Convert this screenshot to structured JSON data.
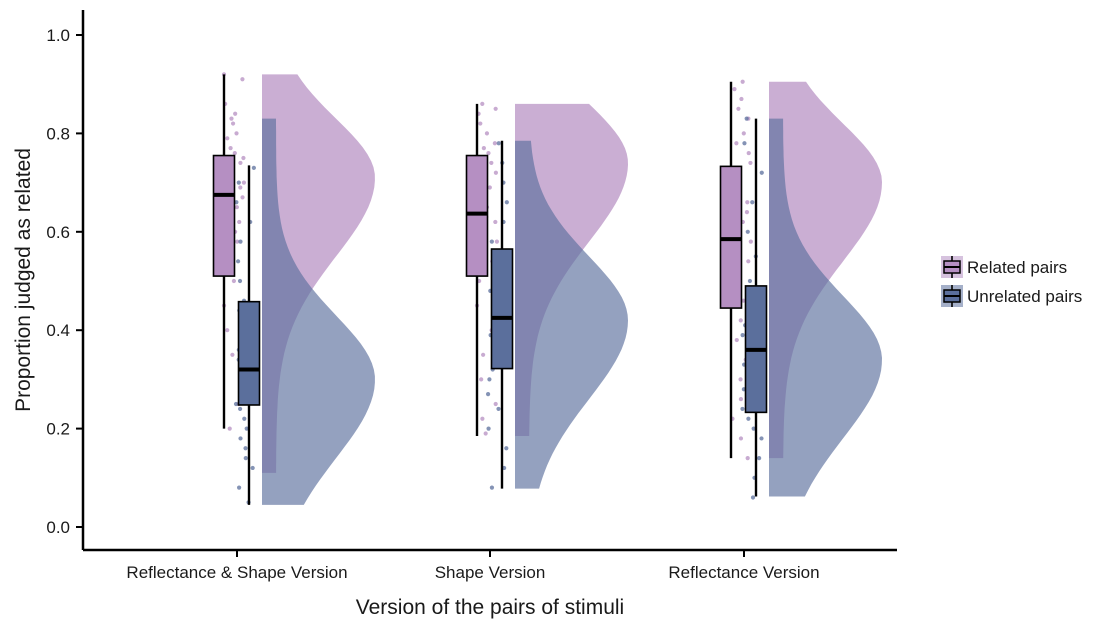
{
  "chart_data": {
    "type": "raincloud",
    "title": "",
    "xlabel": "Version of the pairs of stimuli",
    "ylabel": "Proportion judged as related",
    "ylim": [
      -0.04,
      1.05
    ],
    "yticks": [
      0.0,
      0.2,
      0.4,
      0.6,
      0.8,
      1.0
    ],
    "ytick_labels": [
      "0.0",
      "0.2",
      "0.4",
      "0.6",
      "0.8",
      "1.0"
    ],
    "grid": false,
    "legend_position": "right",
    "categories": [
      "Reflectance & Shape Version",
      "Shape Version",
      "Reflectance Version"
    ],
    "series": [
      {
        "name": "Related pairs",
        "color": "#b58fc2",
        "box_stats": [
          {
            "min": 0.2,
            "q1": 0.51,
            "median": 0.675,
            "q3": 0.755,
            "max": 0.92
          },
          {
            "min": 0.185,
            "q1": 0.51,
            "median": 0.637,
            "q3": 0.755,
            "max": 0.86
          },
          {
            "min": 0.14,
            "q1": 0.445,
            "median": 0.585,
            "q3": 0.733,
            "max": 0.905
          }
        ],
        "density_mode": [
          0.71,
          0.74,
          0.7
        ],
        "density_range": [
          [
            0.11,
            0.92
          ],
          [
            0.185,
            0.86
          ],
          [
            0.14,
            0.905
          ]
        ]
      },
      {
        "name": "Unrelated pairs",
        "color": "#5b6f9c",
        "box_stats": [
          {
            "min": 0.045,
            "q1": 0.248,
            "median": 0.32,
            "q3": 0.458,
            "max": 0.735
          },
          {
            "min": 0.078,
            "q1": 0.322,
            "median": 0.425,
            "q3": 0.565,
            "max": 0.785
          },
          {
            "min": 0.062,
            "q1": 0.233,
            "median": 0.36,
            "q3": 0.49,
            "max": 0.83
          }
        ],
        "density_mode": [
          0.3,
          0.42,
          0.34
        ],
        "density_range": [
          [
            0.045,
            0.83
          ],
          [
            0.078,
            0.785
          ],
          [
            0.062,
            0.83
          ]
        ]
      }
    ],
    "jitter_points": {
      "Related pairs": [
        [
          0.92,
          0.91,
          0.86,
          0.84,
          0.83,
          0.82,
          0.8,
          0.79,
          0.77,
          0.76,
          0.75,
          0.74,
          0.72,
          0.7,
          0.69,
          0.68,
          0.67,
          0.66,
          0.65,
          0.64,
          0.62,
          0.6,
          0.58,
          0.56,
          0.55,
          0.53,
          0.5,
          0.45,
          0.4,
          0.35,
          0.3,
          0.25,
          0.2
        ],
        [
          0.86,
          0.85,
          0.84,
          0.82,
          0.8,
          0.78,
          0.77,
          0.76,
          0.74,
          0.72,
          0.7,
          0.69,
          0.68,
          0.66,
          0.65,
          0.64,
          0.63,
          0.62,
          0.6,
          0.58,
          0.56,
          0.54,
          0.52,
          0.5,
          0.45,
          0.4,
          0.35,
          0.3,
          0.25,
          0.22,
          0.19
        ],
        [
          0.905,
          0.89,
          0.87,
          0.85,
          0.83,
          0.8,
          0.78,
          0.76,
          0.74,
          0.72,
          0.7,
          0.68,
          0.66,
          0.64,
          0.62,
          0.6,
          0.58,
          0.56,
          0.54,
          0.5,
          0.46,
          0.42,
          0.38,
          0.34,
          0.3,
          0.26,
          0.22,
          0.18,
          0.14
        ]
      ],
      "Unrelated pairs": [
        [
          0.73,
          0.7,
          0.66,
          0.62,
          0.58,
          0.54,
          0.5,
          0.46,
          0.44,
          0.42,
          0.4,
          0.38,
          0.36,
          0.35,
          0.34,
          0.33,
          0.32,
          0.31,
          0.3,
          0.29,
          0.28,
          0.27,
          0.26,
          0.25,
          0.24,
          0.22,
          0.2,
          0.18,
          0.16,
          0.14,
          0.12,
          0.08,
          0.05
        ],
        [
          0.78,
          0.74,
          0.7,
          0.66,
          0.62,
          0.58,
          0.55,
          0.52,
          0.5,
          0.48,
          0.46,
          0.45,
          0.44,
          0.43,
          0.42,
          0.41,
          0.4,
          0.39,
          0.38,
          0.36,
          0.34,
          0.32,
          0.3,
          0.27,
          0.24,
          0.2,
          0.16,
          0.12,
          0.08
        ],
        [
          0.83,
          0.78,
          0.72,
          0.66,
          0.6,
          0.55,
          0.5,
          0.47,
          0.45,
          0.43,
          0.41,
          0.39,
          0.38,
          0.37,
          0.36,
          0.35,
          0.34,
          0.33,
          0.32,
          0.3,
          0.28,
          0.26,
          0.24,
          0.22,
          0.2,
          0.18,
          0.14,
          0.1,
          0.06
        ]
      ]
    }
  }
}
